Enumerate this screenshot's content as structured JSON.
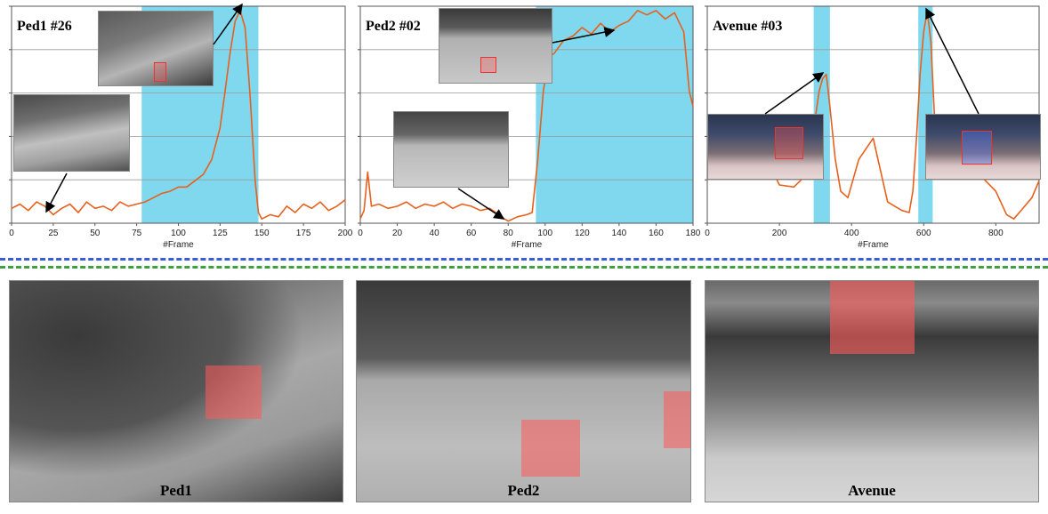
{
  "chart_data": [
    {
      "type": "line",
      "title": "Ped1 #26",
      "xlabel": "#Frame",
      "xlim": [
        0,
        200
      ],
      "xticks": [
        0,
        25,
        50,
        75,
        100,
        125,
        150,
        175,
        200
      ],
      "ylim": [
        0,
        1
      ],
      "grid": true,
      "highlight_ranges": [
        [
          78,
          148
        ]
      ],
      "series": [
        {
          "color": "#e8601c",
          "x": [
            0,
            5,
            10,
            15,
            20,
            25,
            30,
            35,
            40,
            45,
            50,
            55,
            60,
            65,
            70,
            75,
            80,
            85,
            90,
            95,
            100,
            105,
            110,
            115,
            120,
            125,
            128,
            131,
            134,
            137,
            140,
            143,
            146,
            148,
            150,
            155,
            160,
            165,
            170,
            175,
            180,
            185,
            190,
            195,
            200
          ],
          "y": [
            0.07,
            0.09,
            0.06,
            0.1,
            0.08,
            0.04,
            0.07,
            0.09,
            0.05,
            0.1,
            0.07,
            0.08,
            0.06,
            0.1,
            0.08,
            0.09,
            0.1,
            0.12,
            0.14,
            0.15,
            0.17,
            0.17,
            0.2,
            0.23,
            0.3,
            0.45,
            0.62,
            0.8,
            0.95,
            1.0,
            0.92,
            0.6,
            0.2,
            0.05,
            0.02,
            0.04,
            0.03,
            0.08,
            0.05,
            0.09,
            0.07,
            0.1,
            0.06,
            0.08,
            0.11
          ]
        }
      ]
    },
    {
      "type": "line",
      "title": "Ped2 #02",
      "xlabel": "#Frame",
      "xlim": [
        0,
        180
      ],
      "xticks": [
        0,
        20,
        40,
        60,
        80,
        100,
        120,
        140,
        160,
        180
      ],
      "ylim": [
        0,
        1
      ],
      "grid": true,
      "highlight_ranges": [
        [
          95,
          180
        ]
      ],
      "series": [
        {
          "color": "#e8601c",
          "x": [
            0,
            2,
            4,
            6,
            10,
            15,
            20,
            25,
            30,
            35,
            40,
            45,
            50,
            55,
            60,
            65,
            70,
            75,
            78,
            80,
            85,
            90,
            93,
            96,
            99,
            102,
            105,
            110,
            115,
            120,
            125,
            130,
            135,
            140,
            145,
            150,
            155,
            160,
            165,
            170,
            175,
            178,
            180
          ],
          "y": [
            0.02,
            0.06,
            0.24,
            0.08,
            0.09,
            0.07,
            0.08,
            0.1,
            0.07,
            0.09,
            0.08,
            0.1,
            0.07,
            0.09,
            0.08,
            0.06,
            0.07,
            0.04,
            0.02,
            0.01,
            0.03,
            0.04,
            0.05,
            0.3,
            0.62,
            0.78,
            0.8,
            0.86,
            0.88,
            0.92,
            0.89,
            0.94,
            0.9,
            0.93,
            0.95,
            1.0,
            0.98,
            1.0,
            0.96,
            0.99,
            0.9,
            0.62,
            0.55
          ]
        }
      ]
    },
    {
      "type": "line",
      "title": "Avenue #03",
      "xlabel": "#Frame",
      "xticks": [
        0,
        200,
        400,
        600,
        800
      ],
      "xlim": [
        0,
        920
      ],
      "ylim": [
        0,
        1
      ],
      "grid": true,
      "highlight_ranges": [
        [
          295,
          340
        ],
        [
          585,
          625
        ]
      ],
      "series": [
        {
          "color": "#e8601c",
          "x": [
            0,
            40,
            80,
            120,
            160,
            200,
            240,
            270,
            290,
            300,
            310,
            320,
            330,
            340,
            355,
            370,
            390,
            420,
            440,
            460,
            480,
            500,
            520,
            540,
            560,
            570,
            580,
            590,
            600,
            610,
            620,
            630,
            650,
            680,
            720,
            760,
            800,
            830,
            850,
            880,
            900,
            920
          ],
          "y": [
            0.4,
            0.42,
            0.38,
            0.36,
            0.32,
            0.18,
            0.17,
            0.22,
            0.3,
            0.5,
            0.62,
            0.68,
            0.7,
            0.55,
            0.3,
            0.15,
            0.12,
            0.3,
            0.35,
            0.4,
            0.25,
            0.1,
            0.08,
            0.06,
            0.05,
            0.15,
            0.4,
            0.7,
            0.9,
            1.0,
            0.85,
            0.5,
            0.28,
            0.3,
            0.26,
            0.22,
            0.15,
            0.04,
            0.02,
            0.08,
            0.12,
            0.2
          ]
        }
      ]
    }
  ],
  "divider": {
    "colors": [
      "#3b5bdb",
      "#40a040"
    ]
  },
  "photos": [
    {
      "label": "Ped1"
    },
    {
      "label": "Ped2"
    },
    {
      "label": "Avenue"
    }
  ],
  "colors": {
    "highlight": "#7fd8ee",
    "line": "#e8601c",
    "box": "#ff6b6b"
  }
}
